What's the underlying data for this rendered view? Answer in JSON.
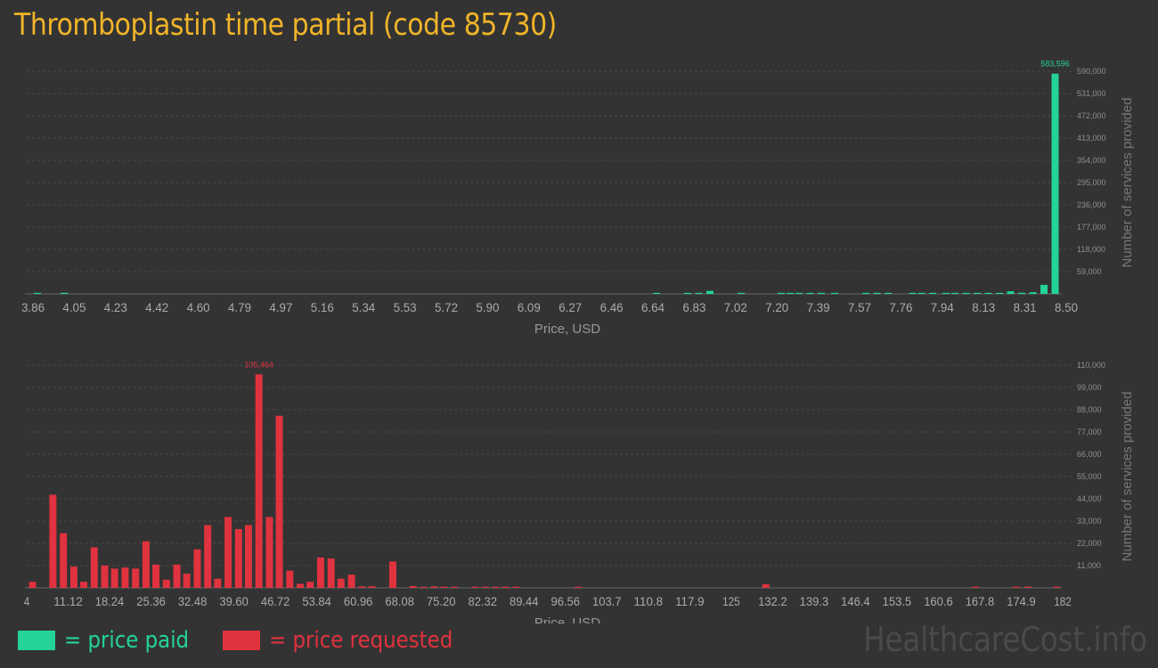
{
  "title": "Thromboplastin time partial (code 85730)",
  "watermark": "HealthcareCost.info",
  "legend": {
    "paid": {
      "label": "= price paid",
      "color": "#23d39a"
    },
    "requested": {
      "label": "= price requested",
      "color": "#e0323f"
    }
  },
  "chart_data": [
    {
      "type": "bar",
      "name": "price paid",
      "color": "#23d39a",
      "xlabel": "Price, USD",
      "ylabel": "Number of services provided",
      "ylim": [
        0,
        590000
      ],
      "yticks": [
        "59,000",
        "118,000",
        "177,000",
        "236,000",
        "295,000",
        "354,000",
        "413,000",
        "472,000",
        "531,000",
        "590,000"
      ],
      "ytick_values": [
        59000,
        118000,
        177000,
        236000,
        295000,
        354000,
        413000,
        472000,
        531000,
        590000
      ],
      "xticks": [
        "3.86",
        "4.05",
        "4.23",
        "4.42",
        "4.60",
        "4.79",
        "4.97",
        "5.16",
        "5.34",
        "5.53",
        "5.72",
        "5.90",
        "6.09",
        "6.27",
        "6.46",
        "6.64",
        "6.83",
        "7.02",
        "7.20",
        "7.39",
        "7.57",
        "7.76",
        "7.94",
        "8.13",
        "8.31",
        "8.50"
      ],
      "xrange": [
        3.86,
        8.5
      ],
      "peak_label": "583,596",
      "bars": [
        {
          "x": 3.88,
          "value": 1200
        },
        {
          "x": 4.0,
          "value": 3000
        },
        {
          "x": 6.66,
          "value": 900
        },
        {
          "x": 6.8,
          "value": 1000
        },
        {
          "x": 6.85,
          "value": 1500
        },
        {
          "x": 6.9,
          "value": 8000
        },
        {
          "x": 7.04,
          "value": 1000
        },
        {
          "x": 7.22,
          "value": 1500
        },
        {
          "x": 7.26,
          "value": 1500
        },
        {
          "x": 7.3,
          "value": 1500
        },
        {
          "x": 7.35,
          "value": 1500
        },
        {
          "x": 7.4,
          "value": 1500
        },
        {
          "x": 7.46,
          "value": 1500
        },
        {
          "x": 7.6,
          "value": 1200
        },
        {
          "x": 7.65,
          "value": 1200
        },
        {
          "x": 7.7,
          "value": 1200
        },
        {
          "x": 7.81,
          "value": 1000
        },
        {
          "x": 7.85,
          "value": 1000
        },
        {
          "x": 7.9,
          "value": 1000
        },
        {
          "x": 7.96,
          "value": 1000
        },
        {
          "x": 8.0,
          "value": 1000
        },
        {
          "x": 8.05,
          "value": 1000
        },
        {
          "x": 8.1,
          "value": 1000
        },
        {
          "x": 8.15,
          "value": 1000
        },
        {
          "x": 8.2,
          "value": 2500
        },
        {
          "x": 8.25,
          "value": 7000
        },
        {
          "x": 8.3,
          "value": 3000
        },
        {
          "x": 8.35,
          "value": 4500
        },
        {
          "x": 8.4,
          "value": 24000
        },
        {
          "x": 8.45,
          "value": 583596
        }
      ]
    },
    {
      "type": "bar",
      "name": "price requested",
      "color": "#e0323f",
      "xlabel": "Price, USD",
      "ylabel": "Number of services provided",
      "ylim": [
        0,
        110000
      ],
      "yticks": [
        "11,000",
        "22,000",
        "33,000",
        "44,000",
        "55,000",
        "66,000",
        "77,000",
        "88,000",
        "99,000",
        "110,000"
      ],
      "ytick_values": [
        11000,
        22000,
        33000,
        44000,
        55000,
        66000,
        77000,
        88000,
        99000,
        110000
      ],
      "xticks": [
        "4",
        "11.12",
        "18.24",
        "25.36",
        "32.48",
        "39.60",
        "46.72",
        "53.84",
        "60.96",
        "68.08",
        "75.20",
        "82.32",
        "89.44",
        "96.56",
        "103.7",
        "110.8",
        "117.9",
        "125",
        "132.2",
        "139.3",
        "146.4",
        "153.5",
        "160.6",
        "167.8",
        "174.9",
        "182"
      ],
      "xrange": [
        4,
        182
      ],
      "peak_label": "105,464",
      "bars": [
        {
          "x": 5.0,
          "value": 3000
        },
        {
          "x": 8.5,
          "value": 46000
        },
        {
          "x": 10.3,
          "value": 27000
        },
        {
          "x": 12.1,
          "value": 10500
        },
        {
          "x": 13.8,
          "value": 3000
        },
        {
          "x": 15.6,
          "value": 20000
        },
        {
          "x": 17.4,
          "value": 11000
        },
        {
          "x": 19.1,
          "value": 9500
        },
        {
          "x": 20.9,
          "value": 10000
        },
        {
          "x": 22.7,
          "value": 9500
        },
        {
          "x": 24.5,
          "value": 23000
        },
        {
          "x": 26.2,
          "value": 11500
        },
        {
          "x": 28.0,
          "value": 4000
        },
        {
          "x": 29.8,
          "value": 11500
        },
        {
          "x": 31.5,
          "value": 7000
        },
        {
          "x": 33.3,
          "value": 19000
        },
        {
          "x": 35.1,
          "value": 31000
        },
        {
          "x": 36.8,
          "value": 4500
        },
        {
          "x": 38.6,
          "value": 35000
        },
        {
          "x": 40.4,
          "value": 29000
        },
        {
          "x": 42.1,
          "value": 31000
        },
        {
          "x": 43.9,
          "value": 105464
        },
        {
          "x": 45.7,
          "value": 35000
        },
        {
          "x": 47.4,
          "value": 85000
        },
        {
          "x": 49.2,
          "value": 8500
        },
        {
          "x": 51.0,
          "value": 2000
        },
        {
          "x": 52.7,
          "value": 3000
        },
        {
          "x": 54.5,
          "value": 15000
        },
        {
          "x": 56.3,
          "value": 14500
        },
        {
          "x": 58.0,
          "value": 4500
        },
        {
          "x": 59.8,
          "value": 6500
        },
        {
          "x": 61.6,
          "value": 700
        },
        {
          "x": 63.3,
          "value": 800
        },
        {
          "x": 66.9,
          "value": 13000
        },
        {
          "x": 70.4,
          "value": 900
        },
        {
          "x": 72.2,
          "value": 500
        },
        {
          "x": 74.0,
          "value": 700
        },
        {
          "x": 75.7,
          "value": 400
        },
        {
          "x": 77.5,
          "value": 300
        },
        {
          "x": 81.0,
          "value": 400
        },
        {
          "x": 82.8,
          "value": 400
        },
        {
          "x": 84.6,
          "value": 400
        },
        {
          "x": 86.3,
          "value": 400
        },
        {
          "x": 88.1,
          "value": 300
        },
        {
          "x": 98.8,
          "value": 500
        },
        {
          "x": 131.0,
          "value": 1800
        },
        {
          "x": 167.0,
          "value": 400
        },
        {
          "x": 174.0,
          "value": 400
        },
        {
          "x": 176.0,
          "value": 600
        },
        {
          "x": 181.0,
          "value": 500
        }
      ]
    }
  ]
}
